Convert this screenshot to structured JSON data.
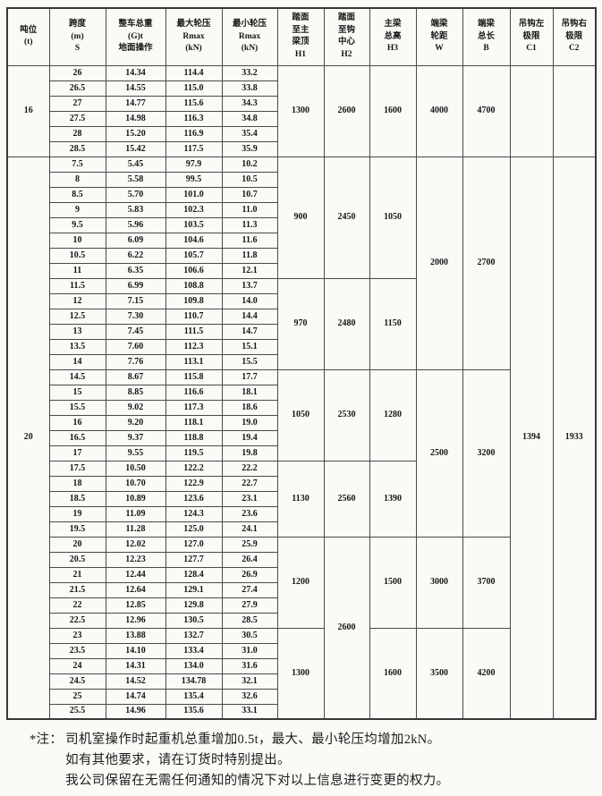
{
  "page": {
    "background": "#fbfaf7",
    "ink": "#151515",
    "grid_line": "#4a4a4a"
  },
  "table": {
    "headers": [
      {
        "id": "tonnage",
        "lines": [
          "吨位",
          "(t)"
        ]
      },
      {
        "id": "span",
        "lines": [
          "跨度",
          "(m)",
          "S"
        ]
      },
      {
        "id": "total-weight",
        "lines": [
          "整车总重",
          "(G)t",
          "地面操作"
        ]
      },
      {
        "id": "max-wheel",
        "lines": [
          "最大轮压",
          "Rmax",
          "(kN)"
        ]
      },
      {
        "id": "min-wheel",
        "lines": [
          "最小轮压",
          "Rmax",
          "(kN)"
        ]
      },
      {
        "id": "h1",
        "lines": [
          "踏面",
          "至主",
          "梁顶",
          "H1"
        ]
      },
      {
        "id": "h2",
        "lines": [
          "踏面",
          "至钩",
          "中心",
          "H2"
        ]
      },
      {
        "id": "h3",
        "lines": [
          "主梁",
          "总高",
          "H3"
        ]
      },
      {
        "id": "w",
        "lines": [
          "端梁",
          "轮距",
          "W"
        ]
      },
      {
        "id": "b",
        "lines": [
          "端梁",
          "总长",
          "B"
        ]
      },
      {
        "id": "c1",
        "lines": [
          "吊钩左",
          "极限",
          "C1"
        ]
      },
      {
        "id": "c2",
        "lines": [
          "吊钩右",
          "极限",
          "C2"
        ]
      }
    ],
    "row_columns": [
      "span",
      "total_weight",
      "rmax",
      "rmin"
    ],
    "sections": [
      {
        "tonnage": "16",
        "rows": [
          [
            "26",
            "14.34",
            "114.4",
            "33.2"
          ],
          [
            "26.5",
            "14.55",
            "115.0",
            "33.8"
          ],
          [
            "27",
            "14.77",
            "115.6",
            "34.3"
          ],
          [
            "27.5",
            "14.98",
            "116.3",
            "34.8"
          ],
          [
            "28",
            "15.20",
            "116.9",
            "35.4"
          ],
          [
            "28.5",
            "15.42",
            "117.5",
            "35.9"
          ]
        ],
        "merges": {
          "h1": [
            {
              "start": 0,
              "span": 6,
              "value": "1300"
            }
          ],
          "h2": [
            {
              "start": 0,
              "span": 6,
              "value": "2600"
            }
          ],
          "h3": [
            {
              "start": 0,
              "span": 6,
              "value": "1600"
            }
          ],
          "w": [
            {
              "start": 0,
              "span": 6,
              "value": "4000"
            }
          ],
          "b": [
            {
              "start": 0,
              "span": 6,
              "value": "4700"
            }
          ],
          "c1": [
            {
              "start": 0,
              "span": 6,
              "value": ""
            }
          ],
          "c2": [
            {
              "start": 0,
              "span": 6,
              "value": ""
            }
          ]
        }
      },
      {
        "tonnage": "20",
        "rows": [
          [
            "7.5",
            "5.45",
            "97.9",
            "10.2"
          ],
          [
            "8",
            "5.58",
            "99.5",
            "10.5"
          ],
          [
            "8.5",
            "5.70",
            "101.0",
            "10.7"
          ],
          [
            "9",
            "5.83",
            "102.3",
            "11.0"
          ],
          [
            "9.5",
            "5.96",
            "103.5",
            "11.3"
          ],
          [
            "10",
            "6.09",
            "104.6",
            "11.6"
          ],
          [
            "10.5",
            "6.22",
            "105.7",
            "11.8"
          ],
          [
            "11",
            "6.35",
            "106.6",
            "12.1"
          ],
          [
            "11.5",
            "6.99",
            "108.8",
            "13.7"
          ],
          [
            "12",
            "7.15",
            "109.8",
            "14.0"
          ],
          [
            "12.5",
            "7.30",
            "110.7",
            "14.4"
          ],
          [
            "13",
            "7.45",
            "111.5",
            "14.7"
          ],
          [
            "13.5",
            "7.60",
            "112.3",
            "15.1"
          ],
          [
            "14",
            "7.76",
            "113.1",
            "15.5"
          ],
          [
            "14.5",
            "8.67",
            "115.8",
            "17.7"
          ],
          [
            "15",
            "8.85",
            "116.6",
            "18.1"
          ],
          [
            "15.5",
            "9.02",
            "117.3",
            "18.6"
          ],
          [
            "16",
            "9.20",
            "118.1",
            "19.0"
          ],
          [
            "16.5",
            "9.37",
            "118.8",
            "19.4"
          ],
          [
            "17",
            "9.55",
            "119.5",
            "19.8"
          ],
          [
            "17.5",
            "10.50",
            "122.2",
            "22.2"
          ],
          [
            "18",
            "10.70",
            "122.9",
            "22.7"
          ],
          [
            "18.5",
            "10.89",
            "123.6",
            "23.1"
          ],
          [
            "19",
            "11.09",
            "124.3",
            "23.6"
          ],
          [
            "19.5",
            "11.28",
            "125.0",
            "24.1"
          ],
          [
            "20",
            "12.02",
            "127.0",
            "25.9"
          ],
          [
            "20.5",
            "12.23",
            "127.7",
            "26.4"
          ],
          [
            "21",
            "12.44",
            "128.4",
            "26.9"
          ],
          [
            "21.5",
            "12.64",
            "129.1",
            "27.4"
          ],
          [
            "22",
            "12.85",
            "129.8",
            "27.9"
          ],
          [
            "22.5",
            "12.96",
            "130.5",
            "28.5"
          ],
          [
            "23",
            "13.88",
            "132.7",
            "30.5"
          ],
          [
            "23.5",
            "14.10",
            "133.4",
            "31.0"
          ],
          [
            "24",
            "14.31",
            "134.0",
            "31.6"
          ],
          [
            "24.5",
            "14.52",
            "134.78",
            "32.1"
          ],
          [
            "25",
            "14.74",
            "135.4",
            "32.6"
          ],
          [
            "25.5",
            "14.96",
            "135.6",
            "33.1"
          ]
        ],
        "merges": {
          "h1": [
            {
              "start": 0,
              "span": 8,
              "value": "900"
            },
            {
              "start": 8,
              "span": 6,
              "value": "970"
            },
            {
              "start": 14,
              "span": 6,
              "value": "1050"
            },
            {
              "start": 20,
              "span": 5,
              "value": "1130"
            },
            {
              "start": 25,
              "span": 6,
              "value": "1200"
            },
            {
              "start": 31,
              "span": 6,
              "value": "1300"
            }
          ],
          "h2": [
            {
              "start": 0,
              "span": 8,
              "value": "2450"
            },
            {
              "start": 8,
              "span": 6,
              "value": "2480"
            },
            {
              "start": 14,
              "span": 6,
              "value": "2530"
            },
            {
              "start": 20,
              "span": 5,
              "value": "2560"
            },
            {
              "start": 25,
              "span": 12,
              "value": "2600"
            }
          ],
          "h3": [
            {
              "start": 0,
              "span": 8,
              "value": "1050"
            },
            {
              "start": 8,
              "span": 6,
              "value": "1150"
            },
            {
              "start": 14,
              "span": 6,
              "value": "1280"
            },
            {
              "start": 20,
              "span": 5,
              "value": "1390"
            },
            {
              "start": 25,
              "span": 6,
              "value": "1500"
            },
            {
              "start": 31,
              "span": 6,
              "value": "1600"
            }
          ],
          "w": [
            {
              "start": 0,
              "span": 14,
              "value": "2000"
            },
            {
              "start": 14,
              "span": 11,
              "value": "2500"
            },
            {
              "start": 25,
              "span": 6,
              "value": "3000"
            },
            {
              "start": 31,
              "span": 6,
              "value": "3500"
            }
          ],
          "b": [
            {
              "start": 0,
              "span": 14,
              "value": "2700"
            },
            {
              "start": 14,
              "span": 11,
              "value": "3200"
            },
            {
              "start": 25,
              "span": 6,
              "value": "3700"
            },
            {
              "start": 31,
              "span": 6,
              "value": "4200"
            }
          ],
          "c1": [
            {
              "start": 0,
              "span": 37,
              "value": "1394"
            }
          ],
          "c2": [
            {
              "start": 0,
              "span": 37,
              "value": "1933"
            }
          ]
        }
      }
    ]
  },
  "notes": {
    "marker": "*注：",
    "lines": [
      "司机室操作时起重机总重增加0.5t，最大、最小轮压均增加2kN。",
      "如有其他要求，请在订货时特别提出。",
      "我公司保留在无需任何通知的情况下对以上信息进行变更的权力。"
    ]
  }
}
